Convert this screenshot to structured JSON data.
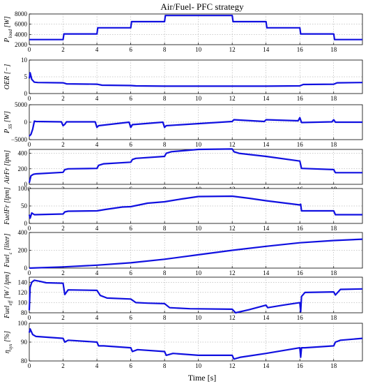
{
  "figure": {
    "title": "Air/Fuel- PFC strategy",
    "xlabel": "Time [s]"
  },
  "colors": {
    "line": "#1010e0",
    "grid": "#9a9a9a"
  },
  "chart_data": [
    {
      "type": "line",
      "ylabel": "P_load [W]",
      "xlim": [
        0,
        19.7
      ],
      "ylim": [
        2000,
        8000
      ],
      "yticks": [
        2000,
        4000,
        6000,
        8000
      ],
      "xticks": [
        0,
        2,
        4,
        6,
        8,
        10,
        12,
        14,
        16,
        18
      ],
      "grid": true,
      "series": [
        {
          "x": [
            0,
            2,
            2.05,
            4,
            4.05,
            6,
            6.05,
            8,
            8.05,
            12,
            12.05,
            14,
            14.05,
            16,
            16.05,
            18,
            18.05,
            19.7
          ],
          "y": [
            3000,
            3000,
            4100,
            4100,
            5300,
            5300,
            6500,
            6500,
            7700,
            7700,
            6500,
            6500,
            5300,
            5300,
            4100,
            4100,
            3000,
            3000
          ]
        }
      ]
    },
    {
      "type": "line",
      "ylabel": "OER [−]",
      "xlim": [
        0,
        19.7
      ],
      "ylim": [
        0,
        10
      ],
      "yticks": [
        0,
        5,
        10
      ],
      "xticks": [
        0,
        2,
        4,
        6,
        8,
        10,
        12,
        14,
        16,
        18
      ],
      "grid": true,
      "series": [
        {
          "x": [
            0,
            0.05,
            0.15,
            0.3,
            0.5,
            2,
            2.2,
            4,
            4.3,
            6,
            6.3,
            8,
            8.3,
            12,
            12.3,
            14,
            16,
            16.2,
            18,
            18.2,
            19.7
          ],
          "y": [
            4.5,
            6.2,
            4.2,
            3.4,
            3.3,
            3.2,
            2.9,
            2.8,
            2.5,
            2.4,
            2.3,
            2.2,
            2.2,
            2.2,
            2.2,
            2.2,
            2.3,
            2.7,
            2.8,
            3.2,
            3.3
          ]
        }
      ]
    },
    {
      "type": "line",
      "ylabel": "P_SS [W]",
      "xlim": [
        0,
        19.7
      ],
      "ylim": [
        -5000,
        5000
      ],
      "yticks": [
        -5000,
        0,
        5000
      ],
      "xticks": [
        0,
        2,
        4,
        6,
        8,
        10,
        12,
        14,
        16,
        18
      ],
      "grid": true,
      "series": [
        {
          "x": [
            0,
            0.1,
            0.2,
            0.3,
            0.4,
            1.9,
            2.0,
            2.1,
            2.2,
            3.9,
            4.0,
            4.1,
            5.9,
            6.0,
            6.1,
            7.9,
            8.0,
            8.1,
            12.0,
            12.1,
            13.9,
            14.0,
            15.9,
            16.0,
            16.1,
            17.9,
            18.0,
            18.1,
            19.7
          ],
          "y": [
            -4000,
            -3500,
            -2000,
            300,
            200,
            100,
            -1000,
            -600,
            100,
            100,
            -1500,
            -1000,
            0,
            -1500,
            -700,
            0,
            -1500,
            -1000,
            200,
            700,
            200,
            700,
            400,
            1300,
            -100,
            100,
            700,
            0,
            0
          ]
        }
      ]
    },
    {
      "type": "line",
      "ylabel": "AirFr [lpm]",
      "xlim": [
        0,
        19.7
      ],
      "ylim": [
        0,
        450
      ],
      "yticks": [
        0,
        200,
        400
      ],
      "xticks": [
        0,
        2,
        4,
        6,
        8,
        10,
        12,
        14,
        16,
        18
      ],
      "grid": true,
      "series": [
        {
          "x": [
            0,
            0.1,
            0.25,
            0.4,
            2.0,
            2.1,
            2.3,
            4.0,
            4.1,
            4.4,
            6.0,
            6.1,
            6.3,
            8.0,
            8.1,
            8.4,
            10,
            12.0,
            12.1,
            12.4,
            14,
            16.0,
            16.1,
            18.0,
            18.1,
            19.7
          ],
          "y": [
            20,
            110,
            130,
            135,
            155,
            190,
            200,
            205,
            245,
            265,
            285,
            320,
            335,
            360,
            400,
            420,
            450,
            455,
            420,
            400,
            360,
            300,
            205,
            190,
            150,
            150
          ]
        }
      ]
    },
    {
      "type": "line",
      "ylabel": "FuelFr [lpm]",
      "xlim": [
        0,
        19.7
      ],
      "ylim": [
        0,
        100
      ],
      "yticks": [
        0,
        50,
        100
      ],
      "xticks": [
        0,
        2,
        4,
        6,
        8,
        10,
        12,
        14,
        16,
        18
      ],
      "grid": true,
      "series": [
        {
          "x": [
            0,
            0.05,
            0.15,
            0.3,
            2.0,
            2.1,
            2.3,
            4.0,
            4.5,
            5.5,
            6.0,
            7.0,
            8.0,
            9.0,
            10.0,
            12.0,
            13.0,
            14.0,
            16.0,
            16.05,
            16.1,
            18.0,
            18.1,
            19.7
          ],
          "y": [
            25,
            15,
            30,
            25,
            27,
            33,
            35,
            36,
            40,
            47,
            48,
            58,
            62,
            70,
            77,
            78,
            72,
            65,
            53,
            55,
            36,
            36,
            25,
            25
          ]
        }
      ]
    },
    {
      "type": "line",
      "ylabel": "Fuel_c [liter]",
      "xlim": [
        0,
        19.7
      ],
      "ylim": [
        0,
        400
      ],
      "yticks": [
        0,
        200,
        400
      ],
      "xticks": [
        0,
        2,
        4,
        6,
        8,
        10,
        12,
        14,
        16,
        18
      ],
      "grid": true,
      "series": [
        {
          "x": [
            0,
            2,
            4,
            6,
            8,
            10,
            12,
            14,
            16,
            18,
            19.7
          ],
          "y": [
            0,
            13,
            33,
            60,
            100,
            150,
            200,
            245,
            285,
            310,
            325
          ]
        }
      ]
    },
    {
      "type": "line",
      "ylabel": "Fuel_eff [W / lpm]",
      "xlim": [
        0,
        19.7
      ],
      "ylim": [
        80,
        150
      ],
      "yticks": [
        80,
        100,
        120,
        140
      ],
      "xticks": [
        0,
        2,
        4,
        6,
        8,
        10,
        12,
        14,
        16,
        18
      ],
      "grid": true,
      "series": [
        {
          "x": [
            0,
            0.05,
            0.15,
            0.3,
            0.6,
            1.0,
            2.0,
            2.1,
            2.3,
            4.0,
            4.2,
            4.6,
            6.0,
            6.3,
            7.0,
            8.0,
            8.3,
            9.5,
            12.0,
            12.2,
            13.0,
            14.0,
            14.1,
            15.0,
            16.0,
            16.05,
            16.1,
            16.3,
            18.0,
            18.1,
            18.4,
            19.7
          ],
          "y": [
            85,
            130,
            140,
            144,
            142,
            139,
            138,
            116,
            125,
            124,
            114,
            109,
            107,
            100,
            99,
            98,
            90,
            88,
            87,
            80,
            86,
            95,
            90,
            95,
            100,
            82,
            112,
            120,
            121,
            115,
            126,
            127
          ]
        }
      ]
    },
    {
      "type": "line",
      "ylabel": "η_sys [%]",
      "xlim": [
        0,
        19.7
      ],
      "ylim": [
        80,
        100
      ],
      "yticks": [
        80,
        90,
        100
      ],
      "xticks": [
        0,
        2,
        4,
        6,
        8,
        10,
        12,
        14,
        16,
        18
      ],
      "grid": true,
      "series": [
        {
          "x": [
            0,
            0.05,
            0.2,
            0.4,
            2.0,
            2.1,
            2.3,
            4.0,
            4.1,
            4.4,
            6.0,
            6.1,
            6.4,
            8.0,
            8.1,
            8.5,
            10,
            12.0,
            12.1,
            12.5,
            14,
            16.0,
            16.05,
            16.1,
            16.3,
            18.0,
            18.1,
            18.4,
            19.7
          ],
          "y": [
            95,
            97,
            94,
            93,
            92,
            90,
            91,
            90,
            88,
            88,
            87,
            85,
            86,
            85,
            83,
            84,
            83,
            83,
            81,
            82,
            84,
            87,
            82,
            87,
            87,
            88,
            90,
            91,
            92
          ]
        }
      ]
    }
  ]
}
